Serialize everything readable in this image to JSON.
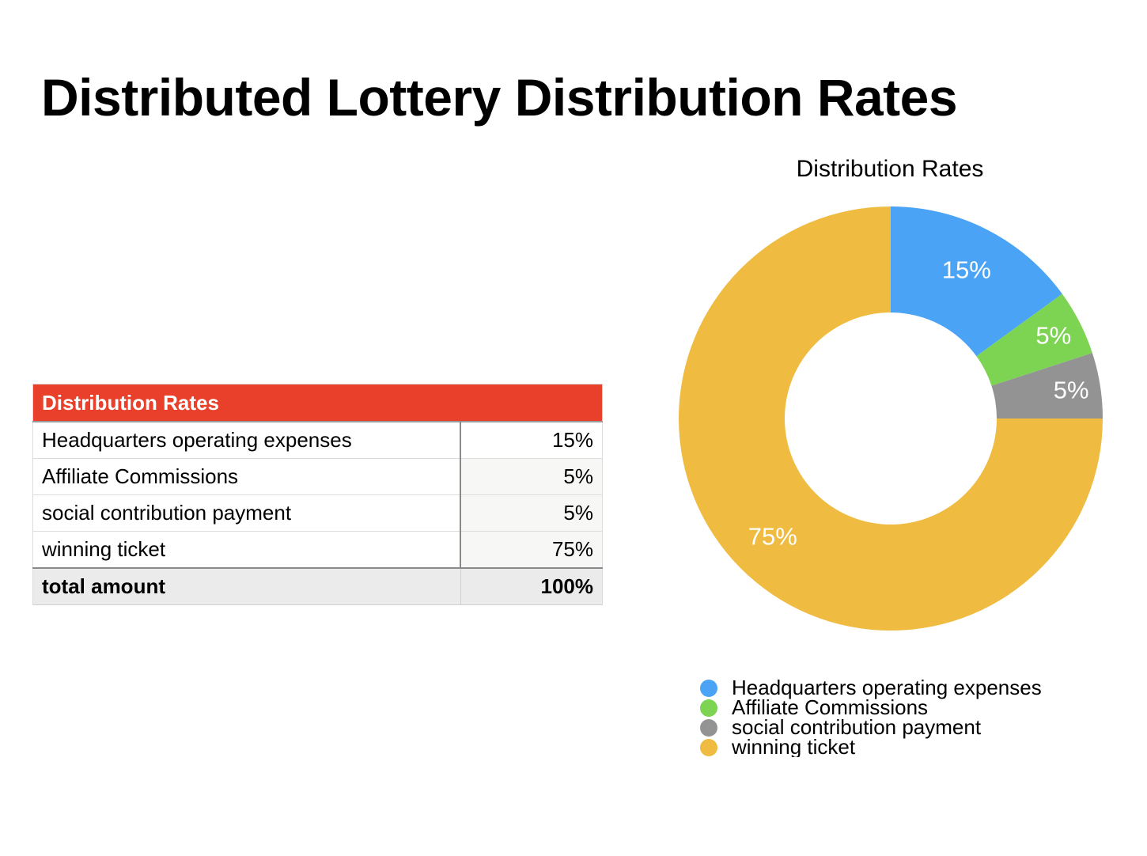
{
  "page": {
    "title": "Distributed Lottery Distribution Rates"
  },
  "table": {
    "header": "Distribution Rates",
    "rows": [
      {
        "label": "Headquarters operating expenses",
        "value": "15%"
      },
      {
        "label": "Affiliate Commissions",
        "value": "5%"
      },
      {
        "label": "social contribution payment",
        "value": "5%"
      },
      {
        "label": "winning ticket",
        "value": "75%"
      }
    ],
    "total": {
      "label": "total amount",
      "value": "100%"
    }
  },
  "chart_data": {
    "type": "pie",
    "style": "donut",
    "title": "Distribution Rates",
    "categories": [
      "Headquarters operating expenses",
      "Affiliate Commissions",
      "social contribution payment",
      "winning ticket"
    ],
    "values": [
      15,
      5,
      5,
      75
    ],
    "data_labels": [
      "15%",
      "5%",
      "5%",
      "75%"
    ],
    "colors": [
      "#4aa3f5",
      "#7dd352",
      "#939393",
      "#efbb40"
    ],
    "legend_position": "bottom"
  },
  "colors": {
    "table_header": "#e8402a"
  }
}
